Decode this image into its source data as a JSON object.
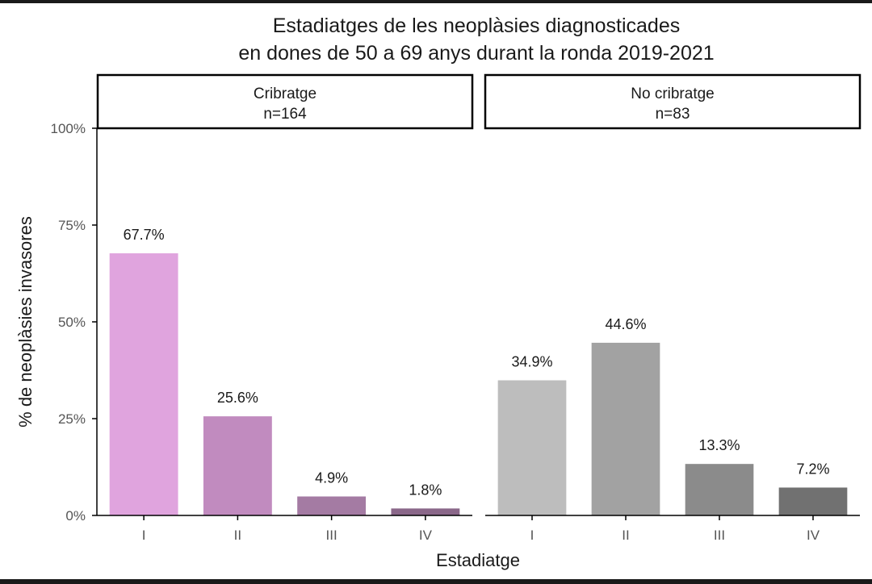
{
  "chart_data": {
    "type": "bar",
    "title_lines": [
      "Estadiatges de les neoplàsies diagnosticades",
      "en dones de 50 a 69 anys durant la ronda 2019-2021"
    ],
    "xlabel": "Estadiatge",
    "ylabel": "% de neoplàsies invasores",
    "ylim": [
      0,
      100
    ],
    "y_ticks": [
      0,
      25,
      50,
      75,
      100
    ],
    "y_tick_labels": [
      "0%",
      "25%",
      "50%",
      "75%",
      "100%"
    ],
    "grid": false,
    "categories": [
      "I",
      "II",
      "III",
      "IV"
    ],
    "panels": [
      {
        "strip": [
          "Cribratge",
          "n=164"
        ],
        "values": [
          67.7,
          25.6,
          4.9,
          1.8
        ],
        "value_labels": [
          "67.7%",
          "25.6%",
          "4.9%",
          "1.8%"
        ],
        "colors": [
          "#e0a4de",
          "#c18bbf",
          "#a47ba3",
          "#8a6789"
        ]
      },
      {
        "strip": [
          "No cribratge",
          "n=83"
        ],
        "values": [
          34.9,
          44.6,
          13.3,
          7.2
        ],
        "value_labels": [
          "34.9%",
          "44.6%",
          "13.3%",
          "7.2%"
        ],
        "colors": [
          "#bdbdbd",
          "#a2a2a2",
          "#8b8b8b",
          "#717171"
        ]
      }
    ]
  }
}
